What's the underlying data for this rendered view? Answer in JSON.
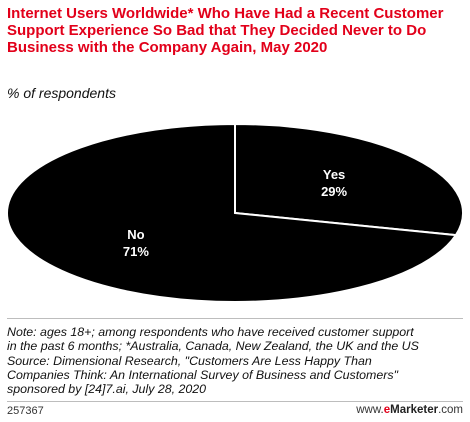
{
  "title": "Internet Users Worldwide* Who Have Had a Recent Customer Support Experience So Bad that They Decided Never to Do Business with the Company Again, May 2020",
  "subtitle": "% of respondents",
  "chart_data": {
    "type": "pie",
    "categories": [
      "Yes",
      "No"
    ],
    "values": [
      29,
      71
    ],
    "value_labels": [
      "29%",
      "71%"
    ],
    "colors": [
      "#000000",
      "#000000"
    ],
    "slice_border_color": "#ffffff"
  },
  "notes": {
    "line1": "Note: ages 18+; among respondents who have received customer support",
    "line2": "in the past 6 months; *Australia, Canada, New Zealand, the UK and the US",
    "line3": "Source: Dimensional Research, \"Customers Are Less Happy Than",
    "line4": "Companies Think: An International Survey of Business and Customers\"",
    "line5": "sponsored by [24]7.ai, July 28, 2020"
  },
  "footer": {
    "chart_id": "257367",
    "brand_prefix": "www.",
    "brand_e": "e",
    "brand_name": "Marketer",
    "brand_suffix": ".com"
  },
  "colors": {
    "accent": "#e2001a",
    "text": "#111111",
    "slice": "#000000"
  }
}
